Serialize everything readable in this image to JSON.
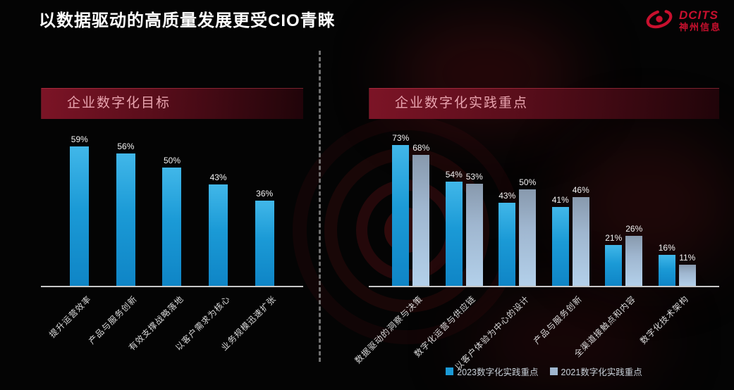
{
  "title": "以数据驱动的高质量发展更受CIO青睐",
  "logo": {
    "brand": "DCITS",
    "name": "神州信息",
    "icon": "swirl-galaxy-icon",
    "color": "#c8102e"
  },
  "colors": {
    "bar_2023_blue": "#1b9ad6",
    "bar_2021_gray": "#9fb6cf",
    "banner_red": "#5c0e1c",
    "banner_text": "#e8a3ae",
    "axis_line": "#c9c9c9",
    "background": "#040404"
  },
  "chart_data": [
    {
      "type": "bar",
      "title": "企业数字化目标",
      "categories": [
        "提升运营效率",
        "产品与服务创新",
        "有效支撑战略落地",
        "以客户需求为核心",
        "业务规模迅速扩张"
      ],
      "values": [
        59,
        56,
        50,
        43,
        36
      ],
      "unit": "%",
      "data_labels": [
        "59%",
        "56%",
        "50%",
        "43%",
        "36%"
      ],
      "ylim": [
        0,
        66
      ],
      "grid": false,
      "legend_position": "none"
    },
    {
      "type": "bar",
      "title": "企业数字化实践重点",
      "categories": [
        "数据驱动的洞察与决策",
        "数字化运营与供应链",
        "以客户体验为中心的设计",
        "产品与服务创新",
        "全渠道接触点和内容",
        "数字化技术架构"
      ],
      "series": [
        {
          "name": "2023数字化实践重点",
          "values": [
            73,
            54,
            43,
            41,
            21,
            16
          ]
        },
        {
          "name": "2021数字化实践重点",
          "values": [
            68,
            53,
            50,
            46,
            26,
            11
          ]
        }
      ],
      "unit": "%",
      "ylim": [
        0,
        81
      ],
      "grid": false,
      "legend_position": "bottom"
    }
  ]
}
